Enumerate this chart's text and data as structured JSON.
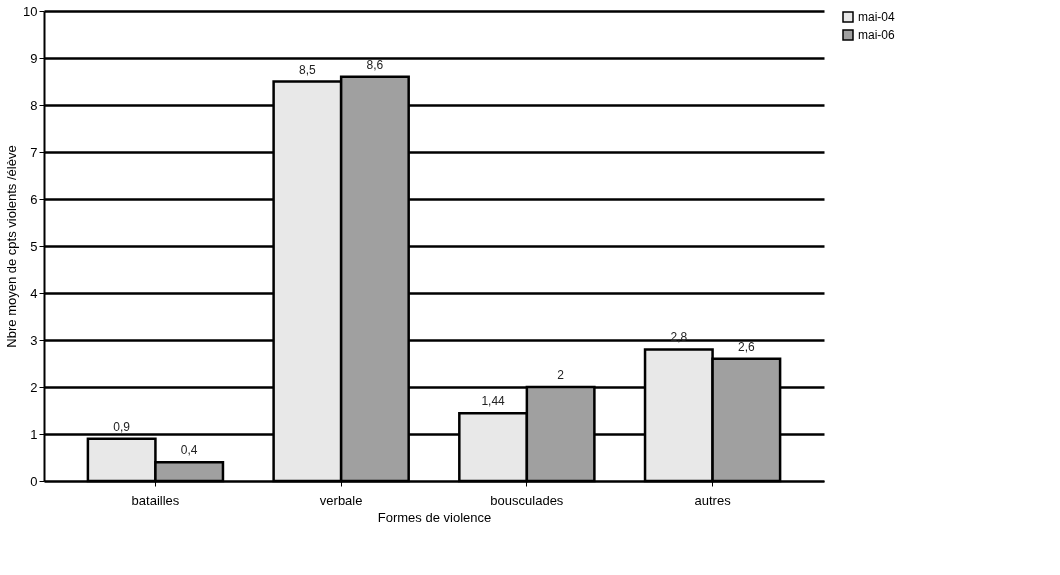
{
  "chart_data": {
    "type": "bar",
    "xlabel": "Formes de violence",
    "ylabel": "Nbre moyen de cpts violents /élève",
    "categories": [
      "batailles",
      "verbale",
      "bousculades",
      "autres"
    ],
    "series": [
      {
        "name": "mai-04",
        "color": "#e8e8e8",
        "values": [
          0.9,
          8.5,
          1.44,
          2.8
        ],
        "value_labels": [
          "0,9",
          "8,5",
          "1,44",
          "2,8"
        ]
      },
      {
        "name": "mai-06",
        "color": "#a0a0a0",
        "values": [
          0.4,
          8.6,
          2,
          2.6
        ],
        "value_labels": [
          "0,4",
          "8,6",
          "2",
          "2,6"
        ]
      }
    ],
    "ylim": [
      0,
      10
    ],
    "yticks": [
      0,
      1,
      2,
      3,
      4,
      5,
      6,
      7,
      8,
      9,
      10
    ],
    "grid": "y",
    "legend": "right"
  }
}
